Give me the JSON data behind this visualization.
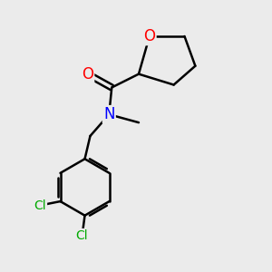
{
  "background_color": "#ebebeb",
  "bond_color": "#000000",
  "bond_width": 1.8,
  "atom_colors": {
    "O": "#ff0000",
    "N": "#0000ff",
    "Cl": "#00aa00",
    "C": "#000000"
  },
  "font_size_atoms": 12,
  "font_size_small": 10,
  "figsize": [
    3.0,
    3.0
  ],
  "dpi": 100
}
